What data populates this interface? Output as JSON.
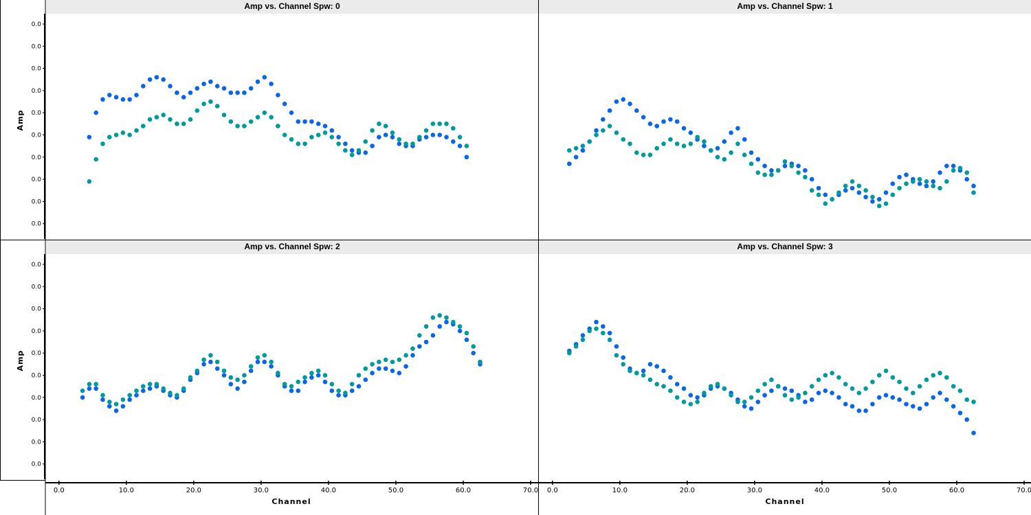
{
  "chart_data": [
    {
      "type": "scatter",
      "title": "Amp vs. Channel Spw: 0",
      "ylabel": "Amp",
      "xlabel": "",
      "ytick_labels": [
        "0.0",
        "0.0",
        "0.0",
        "0.0",
        "0.0",
        "0.0",
        "0.0",
        "0.0",
        "0.0",
        "0.0"
      ],
      "xtick_labels": [],
      "xlim": [
        -1,
        70
      ],
      "ylim": [
        0,
        10
      ],
      "series": [
        {
          "color": "#0a66e6",
          "x": [
            4.5,
            5.5,
            6.5,
            7.5,
            8.5,
            9.5,
            10.5,
            11.5,
            12.5,
            13.5,
            14.5,
            15.5,
            16.5,
            17.5,
            18.5,
            19.5,
            20.5,
            21.5,
            22.5,
            23.5,
            24.5,
            25.5,
            26.5,
            27.5,
            28.5,
            29.5,
            30.5,
            31.5,
            32.5,
            33.5,
            34.5,
            35.5,
            36.5,
            37.5,
            38.5,
            39.5,
            40.5,
            41.5,
            42.5,
            43.5,
            44.5,
            45.5,
            46.5,
            47.5,
            48.5,
            49.5,
            50.5,
            51.5,
            52.5,
            53.5,
            54.5,
            55.5,
            56.5,
            57.5,
            58.5,
            59.5,
            60.5
          ],
          "y": [
            4.9,
            6.0,
            6.6,
            6.8,
            6.7,
            6.6,
            6.6,
            6.8,
            7.2,
            7.5,
            7.6,
            7.5,
            7.2,
            6.9,
            6.7,
            6.9,
            7.1,
            7.3,
            7.4,
            7.2,
            7.1,
            6.9,
            6.9,
            6.9,
            7.1,
            7.4,
            7.6,
            7.3,
            6.8,
            6.4,
            6.0,
            5.6,
            5.6,
            5.6,
            5.5,
            5.4,
            5.2,
            4.9,
            4.6,
            4.3,
            4.2,
            4.2,
            4.5,
            4.9,
            5.0,
            4.9,
            4.6,
            4.5,
            4.5,
            4.8,
            4.9,
            5.0,
            5.0,
            4.9,
            4.7,
            4.5,
            4.0
          ]
        },
        {
          "color": "#00999c",
          "x": [
            4.5,
            5.5,
            6.5,
            7.5,
            8.5,
            9.5,
            10.5,
            11.5,
            12.5,
            13.5,
            14.5,
            15.5,
            16.5,
            17.5,
            18.5,
            19.5,
            20.5,
            21.5,
            22.5,
            23.5,
            24.5,
            25.5,
            26.5,
            27.5,
            28.5,
            29.5,
            30.5,
            31.5,
            32.5,
            33.5,
            34.5,
            35.5,
            36.5,
            37.5,
            38.5,
            39.5,
            40.5,
            41.5,
            42.5,
            43.5,
            44.5,
            45.5,
            46.5,
            47.5,
            48.5,
            49.5,
            50.5,
            51.5,
            52.5,
            53.5,
            54.5,
            55.5,
            56.5,
            57.5,
            58.5,
            59.5,
            60.5
          ],
          "y": [
            2.9,
            3.9,
            4.6,
            4.9,
            5.0,
            5.1,
            5.0,
            5.2,
            5.4,
            5.7,
            5.8,
            5.9,
            5.7,
            5.5,
            5.5,
            5.7,
            6.1,
            6.4,
            6.5,
            6.3,
            5.9,
            5.6,
            5.4,
            5.4,
            5.6,
            5.8,
            6.0,
            5.8,
            5.4,
            5.0,
            4.8,
            4.6,
            4.6,
            4.9,
            5.0,
            5.1,
            4.9,
            4.6,
            4.3,
            4.1,
            4.3,
            4.7,
            5.2,
            5.5,
            5.4,
            5.1,
            4.8,
            4.6,
            4.6,
            4.9,
            5.2,
            5.5,
            5.5,
            5.5,
            5.3,
            4.9,
            4.5
          ]
        }
      ]
    },
    {
      "type": "scatter",
      "title": "Amp vs. Channel Spw: 1",
      "ylabel": "",
      "xlabel": "",
      "ytick_labels": [],
      "xtick_labels": [],
      "xlim": [
        -1,
        70
      ],
      "ylim": [
        0,
        10
      ],
      "series": [
        {
          "color": "#0a66e6",
          "x": [
            2.5,
            3.5,
            4.5,
            5.5,
            6.5,
            7.5,
            8.5,
            9.5,
            10.5,
            11.5,
            12.5,
            13.5,
            14.5,
            15.5,
            16.5,
            17.5,
            18.5,
            19.5,
            20.5,
            21.5,
            22.5,
            23.5,
            24.5,
            25.5,
            26.5,
            27.5,
            28.5,
            29.5,
            30.5,
            31.5,
            32.5,
            33.5,
            34.5,
            35.5,
            36.5,
            37.5,
            38.5,
            39.5,
            40.5,
            41.5,
            42.5,
            43.5,
            44.5,
            45.5,
            46.5,
            47.5,
            48.5,
            49.5,
            50.5,
            51.5,
            52.5,
            53.5,
            54.5,
            55.5,
            56.5,
            57.5,
            58.5,
            59.5,
            60.5,
            61.5,
            62.5
          ],
          "y": [
            3.7,
            4.0,
            4.3,
            4.7,
            5.2,
            5.7,
            6.1,
            6.5,
            6.6,
            6.4,
            6.1,
            5.8,
            5.5,
            5.4,
            5.6,
            5.7,
            5.6,
            5.3,
            5.1,
            4.8,
            4.5,
            4.3,
            4.4,
            4.7,
            5.1,
            5.3,
            4.8,
            4.2,
            3.9,
            3.6,
            3.4,
            3.4,
            3.6,
            3.7,
            3.6,
            3.4,
            3.0,
            2.6,
            2.3,
            2.1,
            2.3,
            2.5,
            2.6,
            2.4,
            2.2,
            2.0,
            2.1,
            2.4,
            2.8,
            3.1,
            3.2,
            3.0,
            2.8,
            2.7,
            2.9,
            3.3,
            3.6,
            3.6,
            3.4,
            3.0,
            2.7
          ]
        },
        {
          "color": "#00999c",
          "x": [
            2.5,
            3.5,
            4.5,
            5.5,
            6.5,
            7.5,
            8.5,
            9.5,
            10.5,
            11.5,
            12.5,
            13.5,
            14.5,
            15.5,
            16.5,
            17.5,
            18.5,
            19.5,
            20.5,
            21.5,
            22.5,
            23.5,
            24.5,
            25.5,
            26.5,
            27.5,
            28.5,
            29.5,
            30.5,
            31.5,
            32.5,
            33.5,
            34.5,
            35.5,
            36.5,
            37.5,
            38.5,
            39.5,
            40.5,
            41.5,
            42.5,
            43.5,
            44.5,
            45.5,
            46.5,
            47.5,
            48.5,
            49.5,
            50.5,
            51.5,
            52.5,
            53.5,
            54.5,
            55.5,
            56.5,
            57.5,
            58.5,
            59.5,
            60.5,
            61.5,
            62.5
          ],
          "y": [
            4.3,
            4.4,
            4.5,
            4.7,
            5.0,
            5.2,
            5.4,
            5.1,
            4.8,
            4.6,
            4.2,
            4.1,
            4.1,
            4.4,
            4.6,
            4.8,
            4.6,
            4.5,
            4.6,
            4.9,
            4.7,
            4.3,
            4.0,
            3.9,
            4.2,
            4.6,
            4.1,
            3.7,
            3.3,
            3.2,
            3.2,
            3.4,
            3.8,
            3.6,
            3.3,
            3.1,
            2.5,
            2.3,
            1.9,
            2.1,
            2.4,
            2.7,
            2.9,
            2.7,
            2.5,
            2.2,
            1.8,
            1.9,
            2.3,
            2.6,
            2.8,
            2.9,
            3.0,
            2.9,
            2.7,
            2.6,
            2.9,
            3.4,
            3.5,
            3.3,
            2.4
          ]
        }
      ]
    },
    {
      "type": "scatter",
      "title": "Amp vs. Channel Spw: 2",
      "ylabel": "Amp",
      "xlabel": "Channel",
      "ytick_labels": [
        "0.0",
        "0.0",
        "0.0",
        "0.0",
        "0.0",
        "0.0",
        "0.0",
        "0.0",
        "0.0",
        "0.0"
      ],
      "xtick_labels": [
        "0.0",
        "10.0",
        "20.0",
        "30.0",
        "40.0",
        "50.0",
        "60.0",
        "70.0"
      ],
      "xlim": [
        -1,
        70
      ],
      "ylim": [
        0,
        10
      ],
      "series": [
        {
          "color": "#0a66e6",
          "x": [
            3.5,
            4.5,
            5.5,
            6.5,
            7.5,
            8.5,
            9.5,
            10.5,
            11.5,
            12.5,
            13.5,
            14.5,
            15.5,
            16.5,
            17.5,
            18.5,
            19.5,
            20.5,
            21.5,
            22.5,
            23.5,
            24.5,
            25.5,
            26.5,
            27.5,
            28.5,
            29.5,
            30.5,
            31.5,
            32.5,
            33.5,
            34.5,
            35.5,
            36.5,
            37.5,
            38.5,
            39.5,
            40.5,
            41.5,
            42.5,
            43.5,
            44.5,
            45.5,
            46.5,
            47.5,
            48.5,
            49.5,
            50.5,
            51.5,
            52.5,
            53.5,
            54.5,
            55.5,
            56.5,
            57.5,
            58.5,
            59.5,
            60.5,
            61.5,
            62.5
          ],
          "y": [
            4.0,
            4.4,
            4.4,
            3.9,
            3.6,
            3.4,
            3.6,
            3.9,
            4.1,
            4.3,
            4.4,
            4.5,
            4.3,
            4.1,
            4.0,
            4.3,
            4.8,
            5.1,
            5.5,
            5.6,
            5.3,
            5.0,
            4.6,
            4.4,
            4.7,
            5.2,
            5.6,
            5.6,
            5.4,
            5.0,
            4.5,
            4.3,
            4.3,
            4.7,
            4.9,
            5.0,
            4.7,
            4.3,
            4.1,
            4.1,
            4.3,
            4.5,
            4.8,
            5.1,
            5.3,
            5.3,
            5.2,
            5.1,
            5.4,
            5.9,
            6.3,
            6.5,
            6.8,
            7.2,
            7.4,
            7.3,
            7.0,
            6.6,
            6.0,
            5.5
          ]
        },
        {
          "color": "#00999c",
          "x": [
            3.5,
            4.5,
            5.5,
            6.5,
            7.5,
            8.5,
            9.5,
            10.5,
            11.5,
            12.5,
            13.5,
            14.5,
            15.5,
            16.5,
            17.5,
            18.5,
            19.5,
            20.5,
            21.5,
            22.5,
            23.5,
            24.5,
            25.5,
            26.5,
            27.5,
            28.5,
            29.5,
            30.5,
            31.5,
            32.5,
            33.5,
            34.5,
            35.5,
            36.5,
            37.5,
            38.5,
            39.5,
            40.5,
            41.5,
            42.5,
            43.5,
            44.5,
            45.5,
            46.5,
            47.5,
            48.5,
            49.5,
            50.5,
            51.5,
            52.5,
            53.5,
            54.5,
            55.5,
            56.5,
            57.5,
            58.5,
            59.5,
            60.5,
            61.5,
            62.5
          ],
          "y": [
            4.3,
            4.6,
            4.6,
            4.1,
            3.8,
            3.7,
            3.9,
            4.1,
            4.3,
            4.5,
            4.6,
            4.6,
            4.4,
            4.2,
            4.1,
            4.4,
            4.9,
            5.2,
            5.7,
            5.9,
            5.6,
            5.2,
            4.9,
            4.8,
            5.0,
            5.4,
            5.8,
            5.9,
            5.6,
            5.1,
            4.6,
            4.5,
            4.7,
            4.9,
            5.1,
            5.2,
            5.0,
            4.6,
            4.3,
            4.2,
            4.6,
            5.0,
            5.3,
            5.5,
            5.6,
            5.7,
            5.6,
            5.7,
            5.9,
            6.2,
            6.8,
            7.2,
            7.6,
            7.7,
            7.6,
            7.4,
            7.2,
            6.9,
            6.3,
            5.6
          ]
        }
      ]
    },
    {
      "type": "scatter",
      "title": "Amp vs. Channel Spw: 3",
      "ylabel": "",
      "xlabel": "Channel",
      "ytick_labels": [],
      "xtick_labels": [
        "0.0",
        "10.0",
        "20.0",
        "30.0",
        "40.0",
        "50.0",
        "60.0",
        "70.0"
      ],
      "xlim": [
        -1,
        70
      ],
      "ylim": [
        0,
        10
      ],
      "series": [
        {
          "color": "#0a66e6",
          "x": [
            2.5,
            3.5,
            4.5,
            5.5,
            6.5,
            7.5,
            8.5,
            9.5,
            10.5,
            11.5,
            12.5,
            13.5,
            14.5,
            15.5,
            16.5,
            17.5,
            18.5,
            19.5,
            20.5,
            21.5,
            22.5,
            23.5,
            24.5,
            25.5,
            26.5,
            27.5,
            28.5,
            29.5,
            30.5,
            31.5,
            32.5,
            33.5,
            34.5,
            35.5,
            36.5,
            37.5,
            38.5,
            39.5,
            40.5,
            41.5,
            42.5,
            43.5,
            44.5,
            45.5,
            46.5,
            47.5,
            48.5,
            49.5,
            50.5,
            51.5,
            52.5,
            53.5,
            54.5,
            55.5,
            56.5,
            57.5,
            58.5,
            59.5,
            60.5,
            61.5,
            62.5
          ],
          "y": [
            6.1,
            6.4,
            6.8,
            7.1,
            7.4,
            7.2,
            6.9,
            6.3,
            5.8,
            5.3,
            5.1,
            5.2,
            5.5,
            5.4,
            5.2,
            4.9,
            4.6,
            4.4,
            4.1,
            4.0,
            4.1,
            4.4,
            4.5,
            4.4,
            4.2,
            3.9,
            3.6,
            3.5,
            3.8,
            4.1,
            4.3,
            4.5,
            4.4,
            4.3,
            4.1,
            3.8,
            3.9,
            4.2,
            4.3,
            4.2,
            4.0,
            3.7,
            3.6,
            3.4,
            3.4,
            3.7,
            4.0,
            4.1,
            4.0,
            3.9,
            3.7,
            3.6,
            3.5,
            3.7,
            4.0,
            4.2,
            3.9,
            3.6,
            3.3,
            3.0,
            2.4
          ]
        },
        {
          "color": "#00999c",
          "x": [
            2.5,
            3.5,
            4.5,
            5.5,
            6.5,
            7.5,
            8.5,
            9.5,
            10.5,
            11.5,
            12.5,
            13.5,
            14.5,
            15.5,
            16.5,
            17.5,
            18.5,
            19.5,
            20.5,
            21.5,
            22.5,
            23.5,
            24.5,
            25.5,
            26.5,
            27.5,
            28.5,
            29.5,
            30.5,
            31.5,
            32.5,
            33.5,
            34.5,
            35.5,
            36.5,
            37.5,
            38.5,
            39.5,
            40.5,
            41.5,
            42.5,
            43.5,
            44.5,
            45.5,
            46.5,
            47.5,
            48.5,
            49.5,
            50.5,
            51.5,
            52.5,
            53.5,
            54.5,
            55.5,
            56.5,
            57.5,
            58.5,
            59.5,
            60.5,
            61.5,
            62.5
          ],
          "y": [
            6.0,
            6.3,
            6.6,
            7.0,
            7.1,
            6.9,
            6.6,
            5.9,
            5.5,
            5.2,
            5.1,
            5.0,
            4.8,
            4.6,
            4.5,
            4.3,
            4.0,
            3.8,
            3.7,
            3.8,
            4.2,
            4.5,
            4.6,
            4.4,
            4.1,
            3.8,
            3.8,
            4.0,
            4.3,
            4.6,
            4.8,
            4.5,
            4.1,
            3.9,
            4.0,
            4.2,
            4.5,
            4.8,
            5.0,
            5.1,
            4.9,
            4.6,
            4.4,
            4.2,
            4.4,
            4.7,
            5.0,
            5.2,
            4.9,
            4.7,
            4.4,
            4.2,
            4.5,
            4.8,
            5.0,
            5.1,
            4.9,
            4.5,
            4.3,
            3.9,
            3.8
          ]
        }
      ]
    }
  ]
}
